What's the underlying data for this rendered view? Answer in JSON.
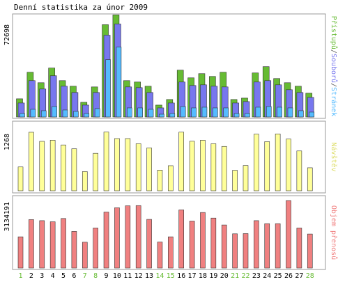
{
  "title": "Denní statistika za únor 2009",
  "colors": {
    "pristupy": "#66bb33",
    "soubory": "#7777ee",
    "stranky": "#55bbff",
    "navstevy": "#ffff99",
    "objem": "#f08080",
    "weekend_label": "#66bb33",
    "weekday_label": "#000000",
    "frame": "#999999"
  },
  "chart_data": [
    {
      "type": "bar",
      "name": "hits-chart",
      "y_max_label": "72698",
      "ylim": [
        0,
        72698
      ],
      "side_label_parts": [
        {
          "text": "Přístupů",
          "color": "#66bb33"
        },
        {
          "text": "/",
          "color": "#555555"
        },
        {
          "text": "Souborů",
          "color": "#7777ee"
        },
        {
          "text": "/",
          "color": "#555555"
        },
        {
          "text": "Stránek",
          "color": "#55bbff"
        }
      ],
      "categories": [
        "1",
        "2",
        "3",
        "4",
        "5",
        "6",
        "7",
        "8",
        "9",
        "10",
        "11",
        "12",
        "13",
        "14",
        "15",
        "16",
        "17",
        "18",
        "19",
        "20",
        "21",
        "22",
        "23",
        "24",
        "25",
        "26",
        "27",
        "28"
      ],
      "series": [
        {
          "name": "Přístupů",
          "values": [
            13000,
            32000,
            24500,
            35000,
            26000,
            22000,
            10500,
            21500,
            66000,
            73000,
            26000,
            25000,
            22000,
            8500,
            12500,
            33500,
            28000,
            31000,
            29000,
            32000,
            12500,
            13500,
            31500,
            36000,
            27500,
            24500,
            22000,
            17000
          ]
        },
        {
          "name": "Souborů",
          "values": [
            10000,
            26000,
            20000,
            29500,
            22000,
            17500,
            8500,
            17500,
            58500,
            66500,
            21500,
            21000,
            17500,
            6500,
            10000,
            25000,
            22500,
            23000,
            22000,
            21500,
            10000,
            11000,
            25000,
            26000,
            23000,
            19500,
            17500,
            14000
          ]
        },
        {
          "name": "Stránek",
          "values": [
            2500,
            5500,
            4500,
            7500,
            5000,
            4000,
            2500,
            6000,
            41000,
            50000,
            6500,
            6500,
            5500,
            2000,
            2500,
            7500,
            6500,
            7000,
            6500,
            6500,
            2500,
            2500,
            7000,
            7500,
            7000,
            6500,
            4500,
            3500
          ]
        }
      ]
    },
    {
      "type": "bar",
      "name": "visits-chart",
      "y_max_label": "1268",
      "ylim": [
        0,
        1268
      ],
      "side_label_parts": [
        {
          "text": "Návštěv",
          "color": "#dddd66"
        }
      ],
      "categories": [
        "1",
        "2",
        "3",
        "4",
        "5",
        "6",
        "7",
        "8",
        "9",
        "10",
        "11",
        "12",
        "13",
        "14",
        "15",
        "16",
        "17",
        "18",
        "19",
        "20",
        "21",
        "22",
        "23",
        "24",
        "25",
        "26",
        "27",
        "28"
      ],
      "series": [
        {
          "name": "Návštěv",
          "values": [
            462,
            1134,
            958,
            980,
            888,
            814,
            372,
            726,
            1139,
            1012,
            1012,
            912,
            830,
            400,
            486,
            1136,
            960,
            980,
            912,
            860,
            397,
            490,
            1098,
            952,
            1102,
            1002,
            772,
            446
          ]
        }
      ]
    },
    {
      "type": "bar",
      "name": "traffic-chart",
      "y_max_label": "3134191",
      "ylim": [
        0,
        3134191
      ],
      "side_label_parts": [
        {
          "text": "Objem přenosů",
          "color": "#f08080"
        }
      ],
      "categories": [
        "1",
        "2",
        "3",
        "4",
        "5",
        "6",
        "7",
        "8",
        "9",
        "10",
        "11",
        "12",
        "13",
        "14",
        "15",
        "16",
        "17",
        "18",
        "19",
        "20",
        "21",
        "22",
        "23",
        "24",
        "25",
        "26",
        "27",
        "28"
      ],
      "series": [
        {
          "name": "Objem přenosů",
          "values": [
            1450000,
            2250000,
            2200000,
            2150000,
            2300000,
            1700000,
            1200000,
            1860000,
            2600000,
            2800000,
            2890000,
            2900000,
            2260000,
            1210000,
            1450000,
            2700000,
            2180000,
            2580000,
            2320000,
            2000000,
            1590000,
            1600000,
            2200000,
            2060000,
            2060000,
            3134191,
            1860000,
            1580000
          ]
        }
      ]
    }
  ],
  "weekend_days": [
    "1",
    "7",
    "8",
    "14",
    "15",
    "21",
    "22",
    "28"
  ]
}
